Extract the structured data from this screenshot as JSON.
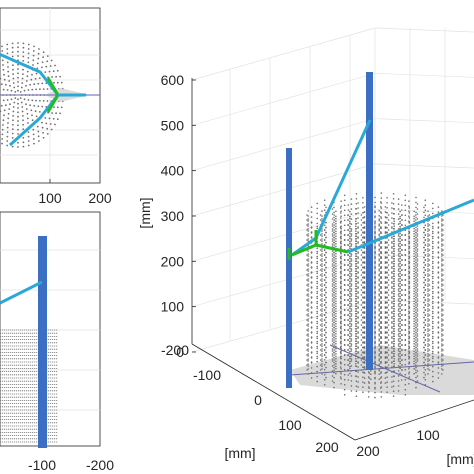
{
  "figure": {
    "colors": {
      "arm": "#29a9d6",
      "joint_arm": "#22bb22",
      "pole": "#3a6fc4",
      "points": "#6f6f6f",
      "axis": "#262626",
      "grid": "#e3e3e3",
      "footprint": "#d3d3d3",
      "hull_line": "#6666aa"
    }
  },
  "chart_data": [
    {
      "panel": "top-view",
      "type": "scatter",
      "xlabel": "",
      "ylabel": "",
      "xticks": [
        "100",
        "200"
      ],
      "yticks": [],
      "xlim": [
        -50,
        220
      ],
      "grid": true,
      "series": [
        {
          "name": "",
          "kind": "reach-points",
          "cx": 30,
          "cy": 0,
          "rx": 70,
          "ry": 120
        },
        {
          "name": "",
          "kind": "upper-link",
          "x": [
            -30,
            55,
            110
          ],
          "y": [
            100,
            60,
            0
          ]
        },
        {
          "name": "",
          "kind": "lower-link",
          "x": [
            20,
            55,
            110
          ],
          "y": [
            -100,
            -60,
            0
          ]
        },
        {
          "name": "",
          "kind": "end-effector",
          "x": [
            110,
            170
          ],
          "y": [
            0,
            0
          ]
        }
      ]
    },
    {
      "panel": "side-view",
      "type": "scatter",
      "xlabel": "",
      "ylabel": "",
      "xticks": [
        "-100",
        "-200"
      ],
      "yticks": [],
      "xlim": [
        -20,
        -235
      ],
      "grid": true,
      "series": [
        {
          "name": "",
          "kind": "pole",
          "x": [
            -105,
            -105
          ],
          "y": [
            0,
            100
          ]
        },
        {
          "name": "",
          "kind": "arm",
          "x": [
            -30,
            -105
          ],
          "y": [
            56,
            72
          ]
        }
      ]
    },
    {
      "panel": "3d-view",
      "type": "scatter",
      "xlabel": "[mm]",
      "ylabel": "[mm]",
      "zlabel": "[mm]",
      "zticks": [
        0,
        100,
        200,
        300,
        400,
        500,
        600
      ],
      "xticks": [
        -200,
        -100,
        0,
        100,
        200
      ],
      "yticks": [
        100,
        200
      ],
      "zlim": [
        0,
        600
      ],
      "grid": true,
      "series": [
        {
          "name": "",
          "kind": "pole-left",
          "x": [
            -55,
            -55
          ],
          "y": [
            120,
            120
          ],
          "z": [
            0,
            440
          ]
        },
        {
          "name": "",
          "kind": "pole-right",
          "x": [
            60,
            60
          ],
          "y": [
            -95,
            -95
          ],
          "z": [
            0,
            560
          ]
        },
        {
          "name": "",
          "kind": "arm-upper",
          "x": [
            -55,
            0,
            50
          ],
          "y": [
            120,
            60,
            -60
          ],
          "z": [
            215,
            225,
            490
          ]
        },
        {
          "name": "",
          "kind": "joint-link",
          "x": [
            -40,
            0,
            40
          ],
          "y": [
            90,
            60,
            30
          ],
          "z": [
            215,
            250,
            215
          ]
        },
        {
          "name": "",
          "kind": "arm-right",
          "x": [
            30,
            200
          ],
          "y": [
            20,
            -140
          ],
          "z": [
            215,
            310
          ]
        },
        {
          "name": "",
          "kind": "reach-volume",
          "radius": 120,
          "z": [
            0,
            300
          ]
        }
      ]
    }
  ]
}
